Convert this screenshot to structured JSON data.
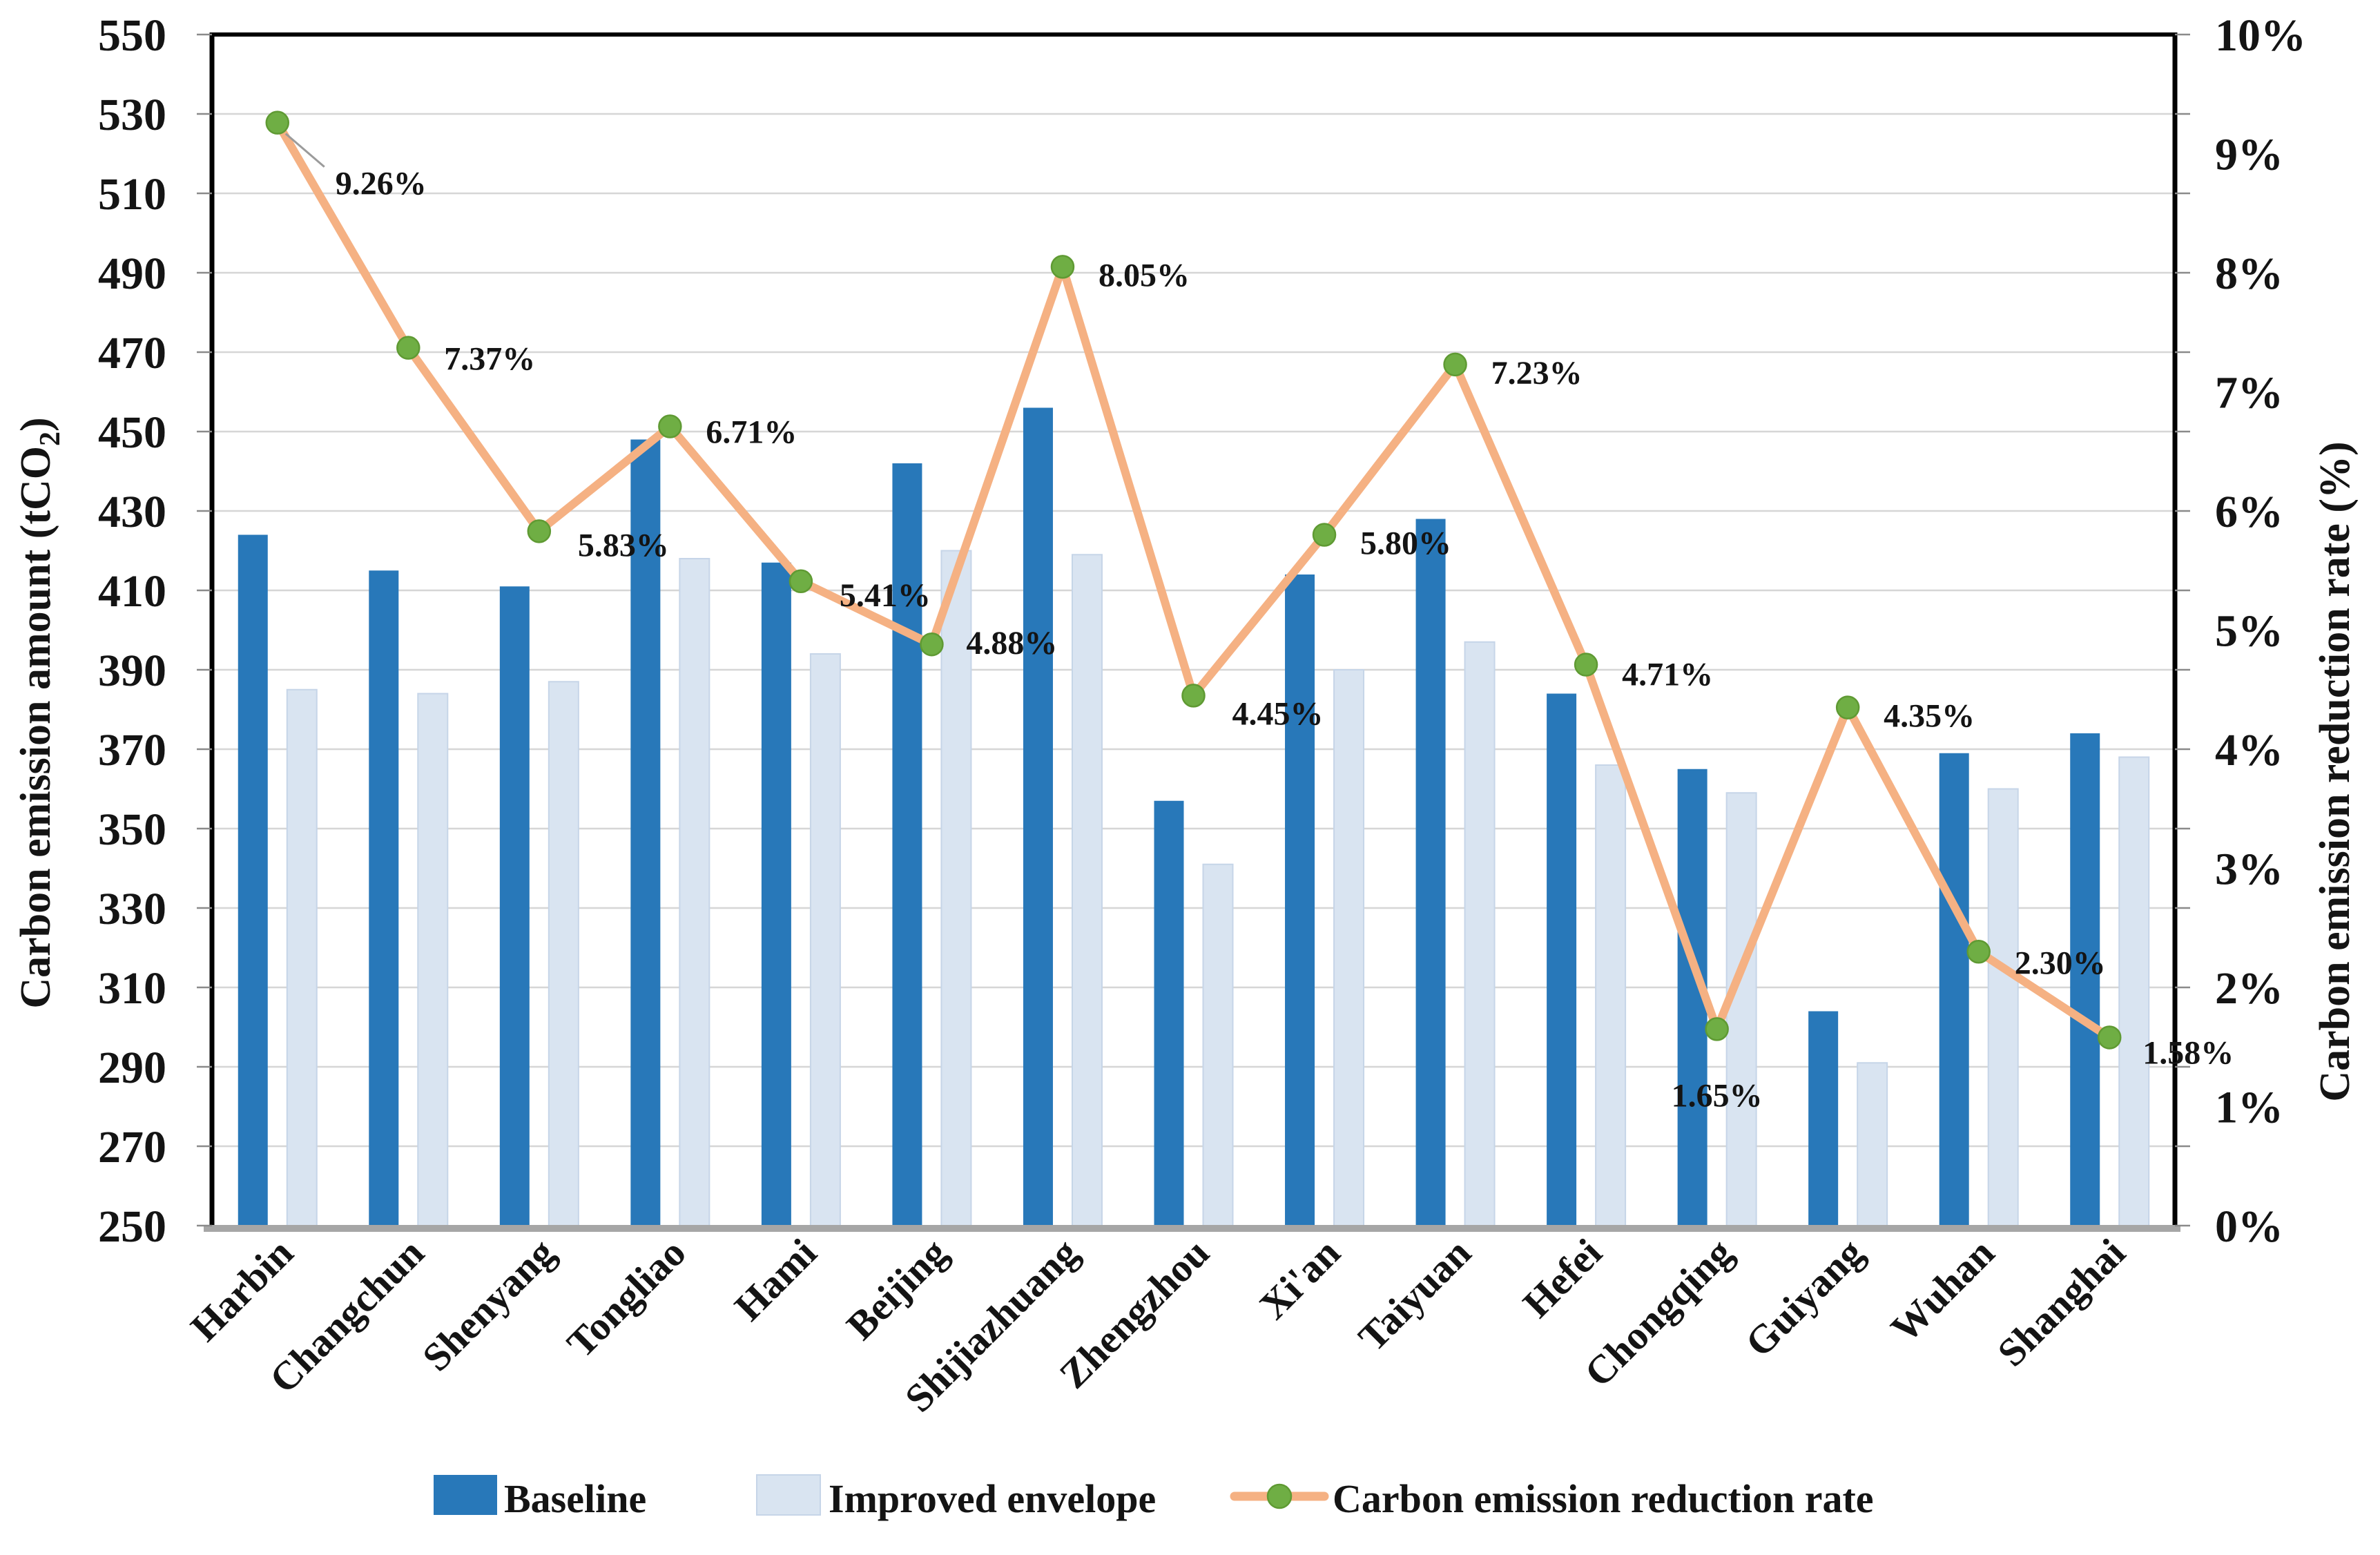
{
  "chart_data": {
    "type": "combo-bar-line",
    "categories": [
      "Harbin",
      "Changchun",
      "Shenyang",
      "Tongliao",
      "Hami",
      "Beijing",
      "Shijiazhuang",
      "Zhengzhou",
      "Xi'an",
      "Taiyuan",
      "Hefei",
      "Chongqing",
      "Guiyang",
      "Wuhan",
      "Shanghai"
    ],
    "series": [
      {
        "name": "Baseline",
        "type": "bar",
        "axis": "left",
        "values": [
          424,
          415,
          411,
          448,
          417,
          442,
          456,
          357,
          414,
          428,
          384,
          365,
          304,
          369,
          374
        ]
      },
      {
        "name": "Improved envelope",
        "type": "bar",
        "axis": "left",
        "values": [
          385,
          384,
          387,
          418,
          394,
          420,
          419,
          341,
          390,
          397,
          366,
          359,
          291,
          360,
          368
        ]
      },
      {
        "name": "Carbon emission reduction rate",
        "type": "line",
        "axis": "right",
        "values_percent": [
          9.26,
          7.37,
          5.83,
          6.71,
          5.41,
          4.88,
          8.05,
          4.45,
          5.8,
          7.23,
          4.71,
          1.65,
          4.35,
          2.3,
          1.58
        ],
        "point_labels": [
          "9.26%",
          "7.37%",
          "5.83%",
          "6.71%",
          "5.41%",
          "4.88%",
          "8.05%",
          "4.45%",
          "5.80%",
          "7.23%",
          "4.71%",
          "1.65%",
          "4.35%",
          "2.30%",
          "1.58%"
        ]
      }
    ],
    "left_axis": {
      "title_pre": "Carbon emission amount (tCO",
      "title_sub": "2",
      "title_post": ")",
      "min": 250,
      "max": 550,
      "step": 20,
      "ticks": [
        "250",
        "270",
        "290",
        "310",
        "330",
        "350",
        "370",
        "390",
        "410",
        "430",
        "450",
        "470",
        "490",
        "510",
        "530",
        "550"
      ]
    },
    "right_axis": {
      "title": "Carbon emission reduction rate (%)",
      "min": 0,
      "max": 10,
      "step": 1,
      "ticks": [
        "0%",
        "1%",
        "2%",
        "3%",
        "4%",
        "5%",
        "6%",
        "7%",
        "8%",
        "9%",
        "10%"
      ]
    },
    "legend": [
      {
        "label": "Baseline",
        "swatch": "bar-dark"
      },
      {
        "label": "Improved envelope",
        "swatch": "bar-light"
      },
      {
        "label": "Carbon emission reduction rate",
        "swatch": "line-dot"
      }
    ],
    "grid": true,
    "colors": {
      "baseline_bar": "#2878B9",
      "improved_bar": "#D9E4F1",
      "improved_bar_edge": "#C6D5E8",
      "line": "#F5B183",
      "marker_fill": "#6FAE44",
      "marker_edge": "#5F9A33",
      "gridline": "#D6D6D6",
      "plot_border": "#000000",
      "bottom_axis": "#A6A6A6",
      "leader": "#9B9B9B",
      "text": "#141414"
    }
  }
}
